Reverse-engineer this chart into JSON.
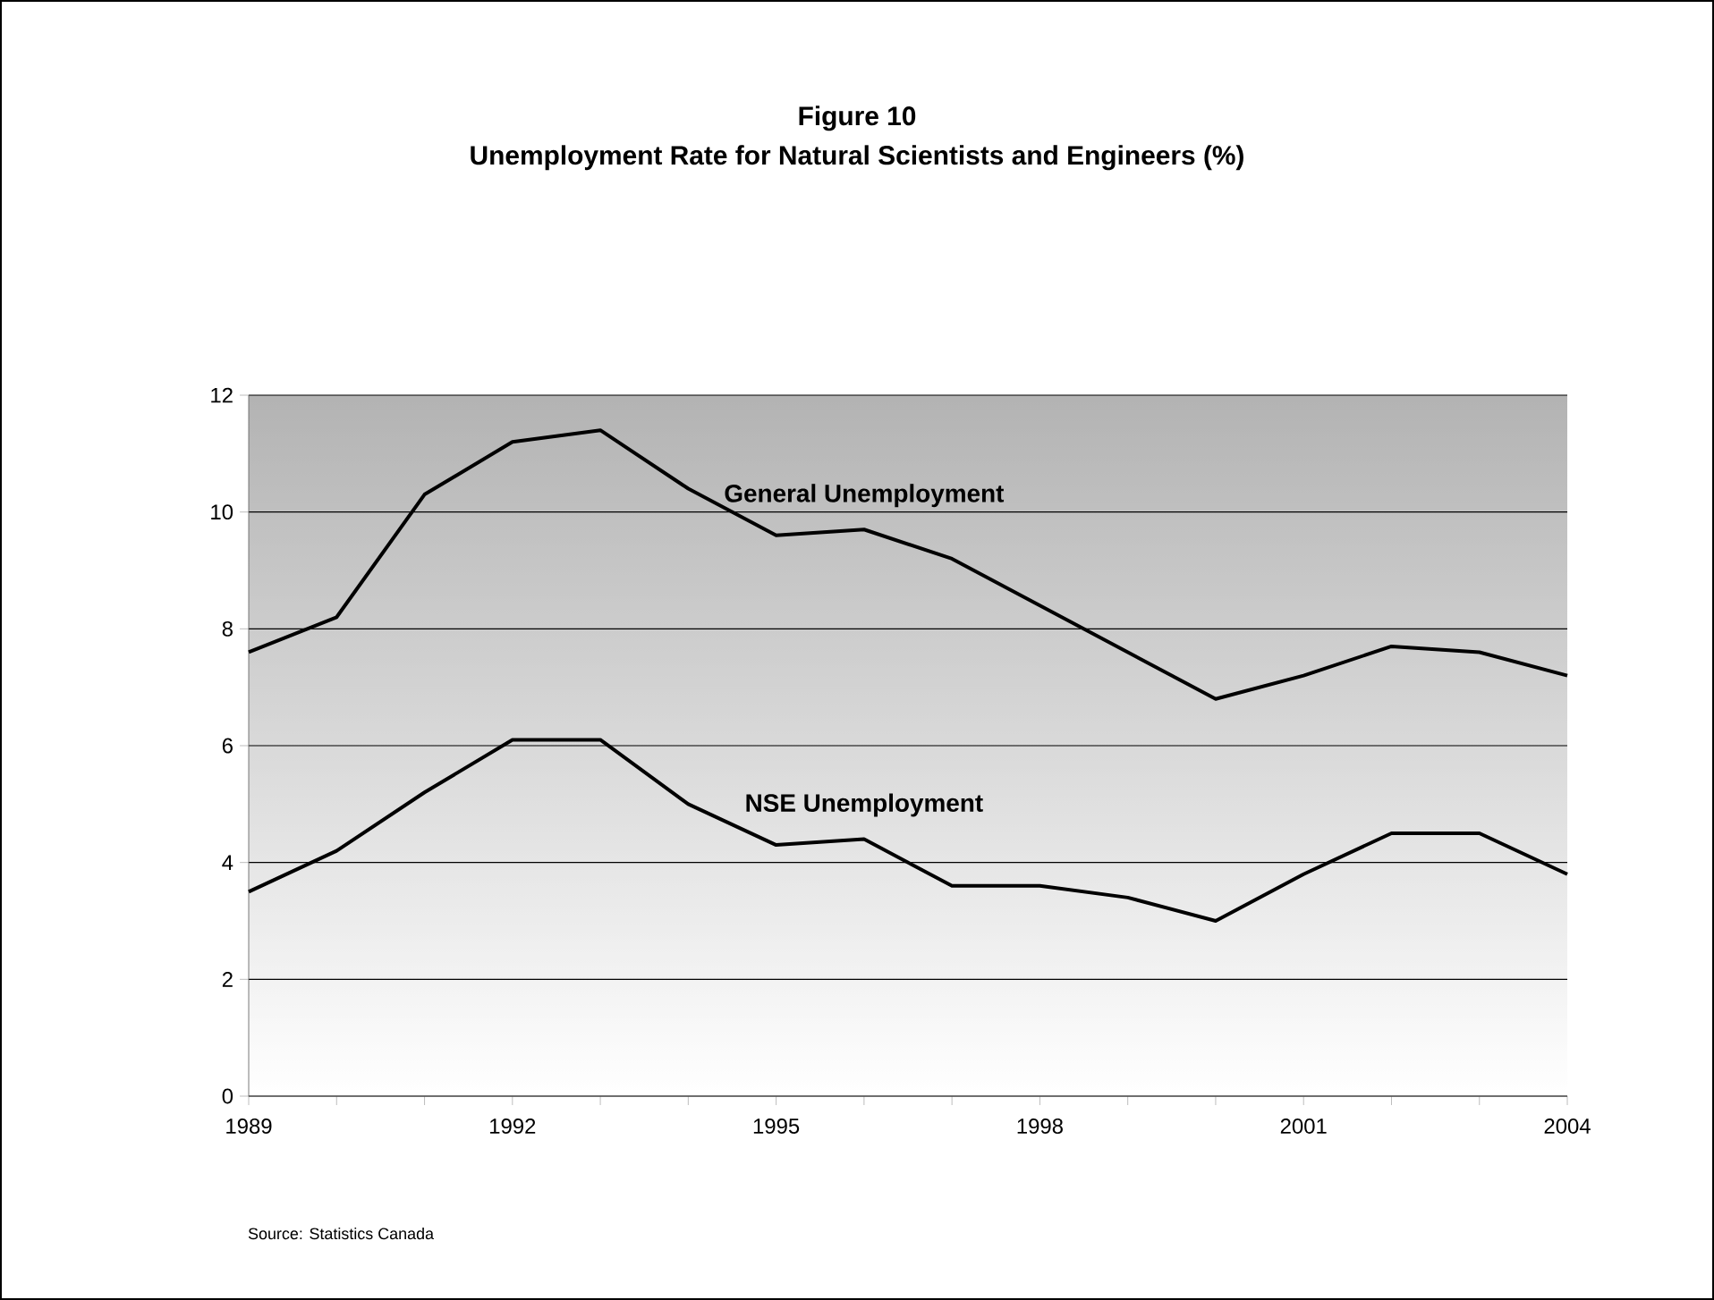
{
  "chart_data": {
    "type": "line",
    "title": "Figure 10",
    "subtitle": "Unemployment Rate for Natural Scientists and Engineers (%)",
    "x": [
      1989,
      1990,
      1991,
      1992,
      1993,
      1994,
      1995,
      1996,
      1997,
      1998,
      1999,
      2000,
      2001,
      2002,
      2003,
      2004
    ],
    "series": [
      {
        "name": "General Unemployment",
        "color": "#000000",
        "values": [
          7.6,
          8.2,
          10.3,
          11.2,
          11.4,
          10.4,
          9.6,
          9.7,
          9.2,
          8.4,
          7.6,
          6.8,
          7.2,
          7.7,
          7.6,
          7.2
        ]
      },
      {
        "name": "NSE Unemployment",
        "color": "#000000",
        "values": [
          3.5,
          4.2,
          5.2,
          6.1,
          6.1,
          5.0,
          4.3,
          4.4,
          3.6,
          3.6,
          3.4,
          3.0,
          3.8,
          4.5,
          4.5,
          3.8
        ]
      }
    ],
    "xlim": [
      1989,
      2004
    ],
    "xticks": [
      1989,
      {
        "value": 1990,
        "label": null
      },
      {
        "value": 1991,
        "label": null
      },
      1992,
      {
        "value": 1993,
        "label": null
      },
      {
        "value": 1994,
        "label": null
      },
      1995,
      {
        "value": 1996,
        "label": null
      },
      {
        "value": 1997,
        "label": null
      },
      1998,
      {
        "value": 1999,
        "label": null
      },
      {
        "value": 2000,
        "label": null
      },
      2001,
      {
        "value": 2002,
        "label": null
      },
      {
        "value": 2003,
        "label": null
      },
      2004
    ],
    "ylim": [
      0,
      12
    ],
    "yticks": [
      0,
      2,
      4,
      6,
      8,
      10,
      12
    ],
    "grid": "y",
    "legend": false,
    "marker": "none",
    "line_style": "solid",
    "annotations": [
      "Source: Statistics Canada"
    ]
  }
}
